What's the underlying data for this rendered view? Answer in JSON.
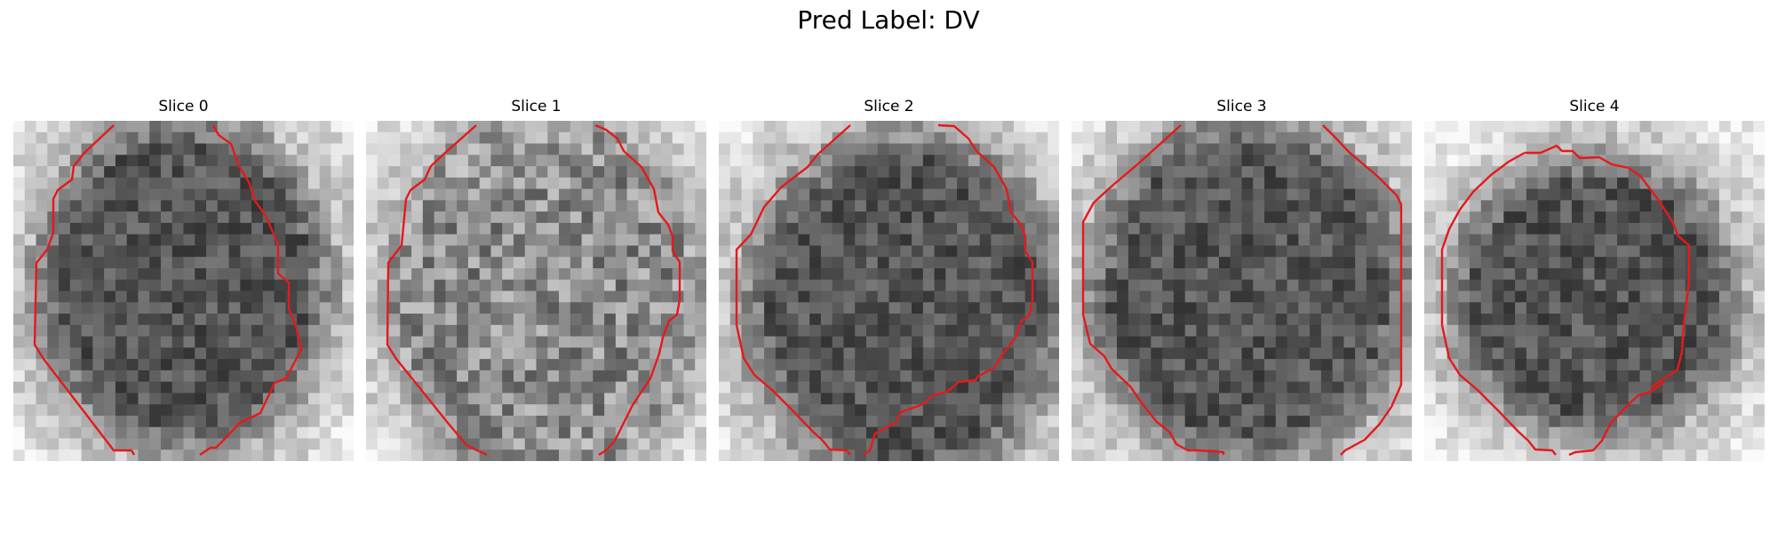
{
  "figure": {
    "title": "Pred Label: DV"
  },
  "slices": [
    {
      "title": "Slice 0",
      "tone": "dark"
    },
    {
      "title": "Slice 1",
      "tone": "light"
    },
    {
      "title": "Slice 2",
      "tone": "dark"
    },
    {
      "title": "Slice 3",
      "tone": "dark"
    },
    {
      "title": "Slice 4",
      "tone": "dark"
    }
  ],
  "colors": {
    "contour": "#e41a1c",
    "background": "#ffffff"
  }
}
